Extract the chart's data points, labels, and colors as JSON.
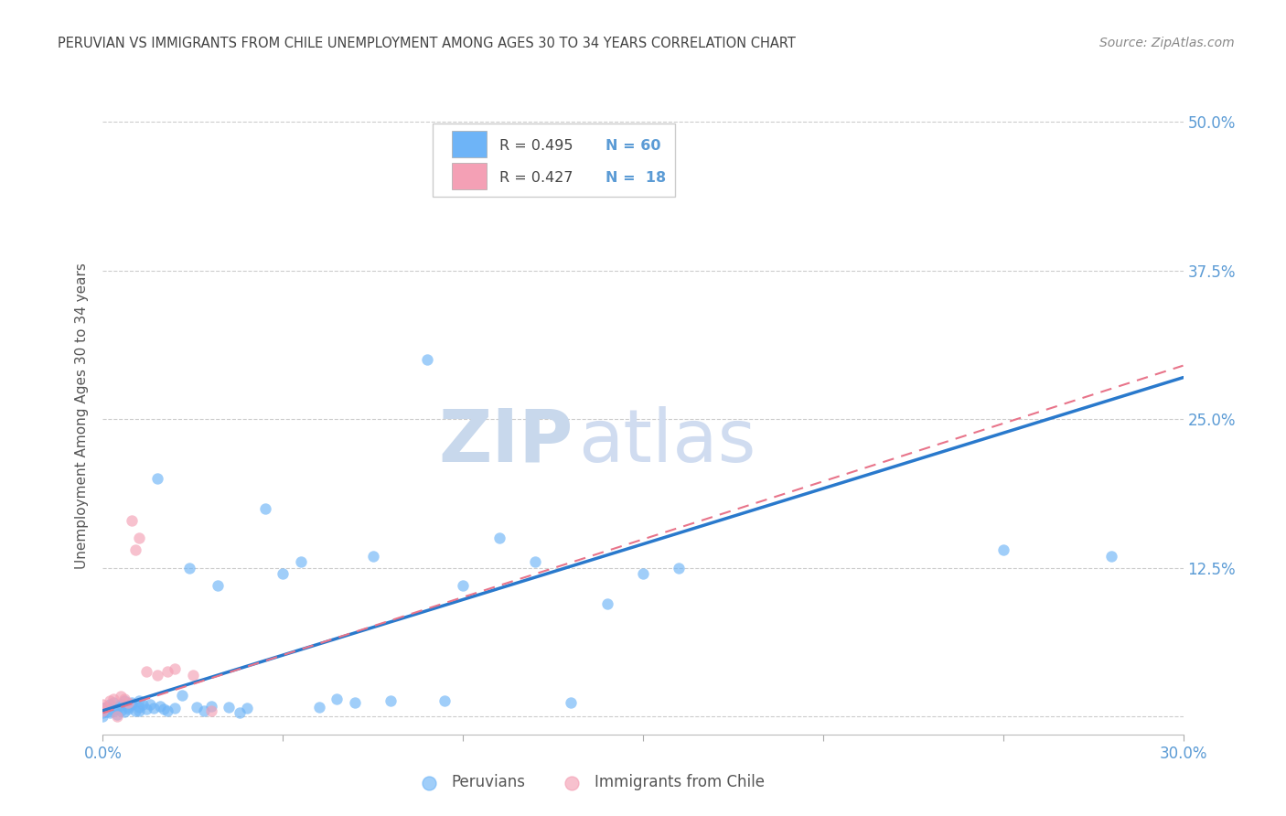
{
  "title": "PERUVIAN VS IMMIGRANTS FROM CHILE UNEMPLOYMENT AMONG AGES 30 TO 34 YEARS CORRELATION CHART",
  "source": "Source: ZipAtlas.com",
  "ylabel": "Unemployment Among Ages 30 to 34 years",
  "xlim": [
    0.0,
    0.3
  ],
  "ylim": [
    -0.015,
    0.52
  ],
  "xticks": [
    0.0,
    0.05,
    0.1,
    0.15,
    0.2,
    0.25,
    0.3
  ],
  "yticks": [
    0.0,
    0.125,
    0.25,
    0.375,
    0.5
  ],
  "blue_color": "#6EB4F7",
  "pink_color": "#F4A0B5",
  "trendline_blue": "#2979CC",
  "trendline_pink": "#E8748A",
  "trendline_pink_style": "--",
  "grid_color": "#CCCCCC",
  "bg_color": "#FFFFFF",
  "title_color": "#444444",
  "source_color": "#888888",
  "legend_label_blue": "Peruvians",
  "legend_label_pink": "Immigrants from Chile",
  "blue_trend": [
    0.0,
    0.3,
    0.005,
    0.285
  ],
  "pink_trend": [
    0.0,
    0.3,
    0.003,
    0.295
  ],
  "watermark_zip": "ZIP",
  "watermark_atlas": "atlas",
  "watermark_color": "#D8E4F0",
  "marker_size": 80,
  "blue_x": [
    0.0,
    0.0,
    0.0,
    0.001,
    0.001,
    0.002,
    0.002,
    0.003,
    0.003,
    0.004,
    0.004,
    0.005,
    0.005,
    0.006,
    0.006,
    0.007,
    0.007,
    0.008,
    0.008,
    0.009,
    0.01,
    0.01,
    0.01,
    0.011,
    0.012,
    0.013,
    0.014,
    0.015,
    0.016,
    0.017,
    0.018,
    0.02,
    0.022,
    0.024,
    0.026,
    0.028,
    0.03,
    0.032,
    0.035,
    0.038,
    0.04,
    0.045,
    0.05,
    0.055,
    0.06,
    0.065,
    0.07,
    0.075,
    0.08,
    0.09,
    0.095,
    0.1,
    0.11,
    0.12,
    0.13,
    0.14,
    0.15,
    0.16,
    0.25,
    0.28
  ],
  "blue_y": [
    0.0,
    0.003,
    0.007,
    0.004,
    0.008,
    0.003,
    0.01,
    0.005,
    0.012,
    0.006,
    0.002,
    0.01,
    0.005,
    0.013,
    0.004,
    0.008,
    0.006,
    0.012,
    0.01,
    0.005,
    0.013,
    0.008,
    0.005,
    0.01,
    0.006,
    0.01,
    0.007,
    0.2,
    0.009,
    0.006,
    0.005,
    0.007,
    0.018,
    0.125,
    0.008,
    0.005,
    0.009,
    0.11,
    0.008,
    0.003,
    0.007,
    0.175,
    0.12,
    0.13,
    0.008,
    0.015,
    0.012,
    0.135,
    0.013,
    0.3,
    0.013,
    0.11,
    0.15,
    0.13,
    0.012,
    0.095,
    0.12,
    0.125,
    0.14,
    0.135
  ],
  "pink_x": [
    0.0,
    0.0,
    0.001,
    0.002,
    0.003,
    0.004,
    0.005,
    0.006,
    0.007,
    0.008,
    0.009,
    0.01,
    0.012,
    0.015,
    0.018,
    0.02,
    0.025,
    0.03
  ],
  "pink_y": [
    0.005,
    0.01,
    0.008,
    0.013,
    0.015,
    0.0,
    0.017,
    0.015,
    0.012,
    0.165,
    0.14,
    0.15,
    0.038,
    0.035,
    0.038,
    0.04,
    0.035,
    0.005
  ]
}
